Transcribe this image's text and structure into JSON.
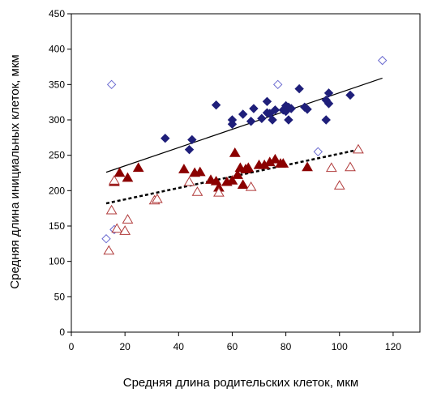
{
  "chart_data": {
    "type": "scatter",
    "title": "",
    "xlabel": "Средняя длина родительских клеток, мкм",
    "ylabel": "Средняя длина инициальных клеток, мкм",
    "xlim": [
      0,
      130
    ],
    "ylim": [
      0,
      450
    ],
    "xticks": [
      "0",
      "20",
      "40",
      "60",
      "80",
      "100",
      "120"
    ],
    "yticks": [
      "0",
      "50",
      "100",
      "150",
      "200",
      "250",
      "300",
      "350",
      "400",
      "450"
    ],
    "grid": false,
    "legend": "none",
    "series": [
      {
        "marker": "diamond-filled",
        "color": "#1f1f7a",
        "points": [
          [
            35,
            274
          ],
          [
            44,
            258
          ],
          [
            45,
            272
          ],
          [
            54,
            321
          ],
          [
            60,
            300
          ],
          [
            60,
            294
          ],
          [
            64,
            308
          ],
          [
            67,
            298
          ],
          [
            68,
            316
          ],
          [
            71,
            302
          ],
          [
            73,
            326
          ],
          [
            73,
            310
          ],
          [
            74,
            309
          ],
          [
            75,
            300
          ],
          [
            76,
            314
          ],
          [
            79,
            314
          ],
          [
            80,
            320
          ],
          [
            80,
            312
          ],
          [
            81,
            300
          ],
          [
            81,
            318
          ],
          [
            82,
            316
          ],
          [
            85,
            344
          ],
          [
            87,
            318
          ],
          [
            88,
            315
          ],
          [
            95,
            300
          ],
          [
            95,
            328
          ],
          [
            96,
            323
          ],
          [
            96,
            338
          ],
          [
            104,
            335
          ]
        ],
        "trendline": {
          "style": "solid",
          "from": [
            13,
            226
          ],
          "to": [
            116,
            359
          ]
        }
      },
      {
        "marker": "diamond-open",
        "color": "#6a6ad0",
        "points": [
          [
            13,
            132
          ],
          [
            15,
            350
          ],
          [
            16,
            145
          ],
          [
            77,
            350
          ],
          [
            92,
            255
          ],
          [
            116,
            384
          ]
        ]
      },
      {
        "marker": "triangle-filled",
        "color": "#8b0000",
        "points": [
          [
            16,
            212
          ],
          [
            18,
            225
          ],
          [
            21,
            218
          ],
          [
            25,
            232
          ],
          [
            42,
            230
          ],
          [
            46,
            225
          ],
          [
            48,
            226
          ],
          [
            52,
            215
          ],
          [
            54,
            213
          ],
          [
            55,
            204
          ],
          [
            58,
            212
          ],
          [
            60,
            214
          ],
          [
            61,
            253
          ],
          [
            62,
            222
          ],
          [
            63,
            232
          ],
          [
            64,
            208
          ],
          [
            65,
            230
          ],
          [
            66,
            232
          ],
          [
            70,
            236
          ],
          [
            72,
            236
          ],
          [
            74,
            240
          ],
          [
            76,
            244
          ],
          [
            78,
            238
          ],
          [
            79,
            238
          ],
          [
            88,
            233
          ]
        ],
        "trendline": {
          "style": "dashed",
          "from": [
            13,
            182
          ],
          "to": [
            106,
            257
          ]
        }
      },
      {
        "marker": "triangle-open",
        "color": "#b03a3a",
        "points": [
          [
            14,
            115
          ],
          [
            15,
            172
          ],
          [
            16,
            214
          ],
          [
            17,
            146
          ],
          [
            20,
            143
          ],
          [
            21,
            159
          ],
          [
            31,
            186
          ],
          [
            32,
            188
          ],
          [
            44,
            212
          ],
          [
            47,
            198
          ],
          [
            55,
            197
          ],
          [
            67,
            205
          ],
          [
            97,
            232
          ],
          [
            100,
            207
          ],
          [
            104,
            233
          ],
          [
            107,
            258
          ]
        ]
      }
    ]
  }
}
